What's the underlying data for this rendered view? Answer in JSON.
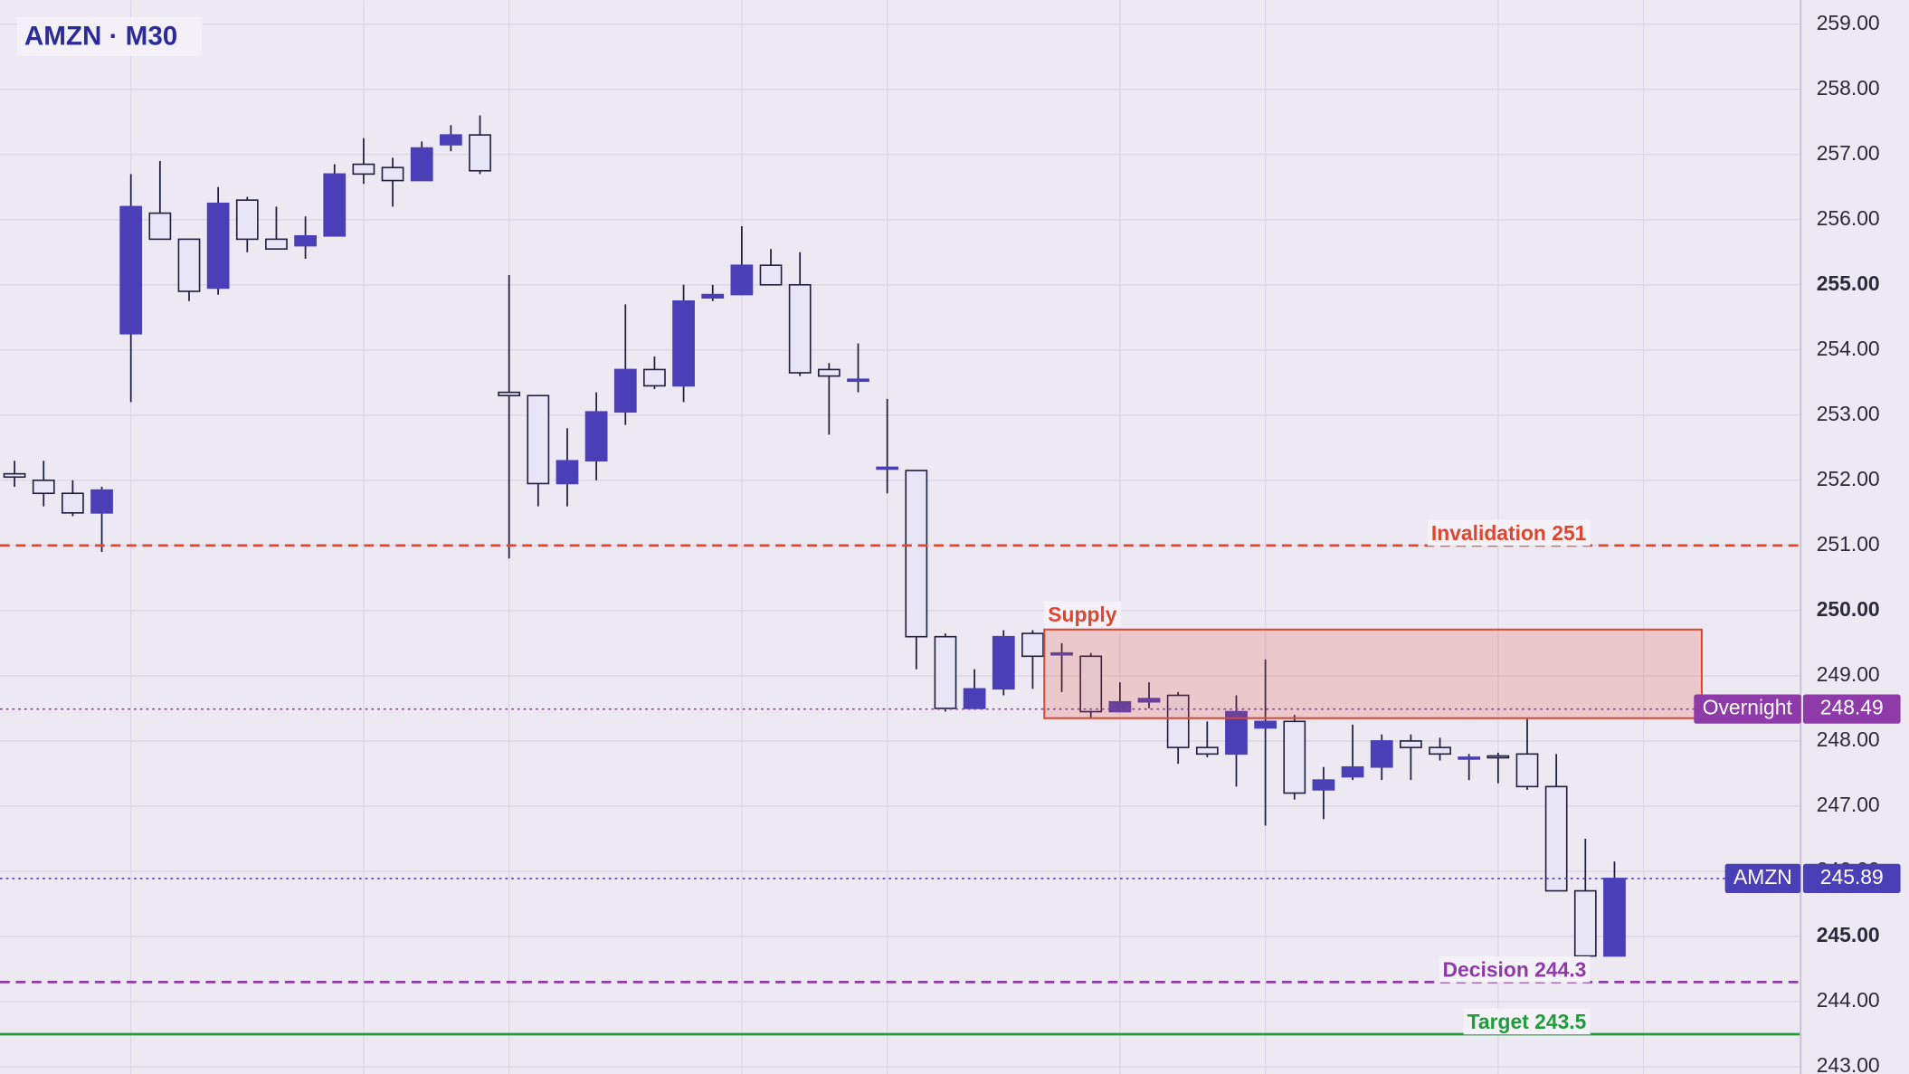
{
  "chart_data": {
    "type": "candlestick",
    "title": "AMZN · M30",
    "open": [
      252.1,
      252.0,
      251.8,
      251.5,
      254.25,
      256.1,
      255.7,
      254.95,
      256.3,
      255.7,
      255.6,
      255.75,
      256.85,
      256.8,
      256.6,
      257.15,
      257.3,
      253.35,
      253.3,
      251.95,
      252.3,
      253.05,
      253.7,
      253.45,
      254.8,
      254.85,
      255.3,
      255.0,
      253.7,
      253.55,
      252.2,
      252.15,
      249.6,
      248.5,
      248.8,
      249.65,
      249.35,
      249.3,
      248.45,
      248.6,
      248.7,
      247.9,
      247.8,
      248.2,
      248.3,
      247.25,
      247.45,
      247.6,
      248.0,
      247.9,
      247.75,
      247.77,
      247.8,
      247.3,
      245.7,
      244.7
    ],
    "high": [
      252.3,
      252.3,
      252.0,
      251.9,
      256.7,
      256.9,
      255.7,
      256.5,
      256.35,
      256.2,
      256.05,
      256.85,
      257.25,
      256.95,
      257.2,
      257.45,
      257.6,
      255.15,
      253.3,
      252.8,
      253.35,
      254.7,
      253.9,
      255.0,
      255.0,
      255.9,
      255.55,
      255.5,
      253.8,
      254.1,
      253.25,
      252.15,
      249.65,
      249.1,
      249.7,
      249.7,
      249.5,
      249.35,
      248.9,
      248.9,
      248.75,
      248.3,
      248.7,
      249.25,
      248.4,
      247.6,
      248.25,
      248.1,
      248.1,
      248.05,
      247.8,
      247.82,
      248.35,
      247.8,
      246.5,
      246.15
    ],
    "low": [
      251.9,
      251.6,
      251.45,
      250.9,
      253.2,
      255.7,
      254.75,
      254.85,
      255.5,
      255.55,
      255.4,
      255.75,
      256.55,
      256.2,
      256.6,
      257.05,
      256.7,
      250.8,
      251.6,
      251.6,
      252.0,
      252.85,
      253.4,
      253.2,
      254.75,
      254.85,
      255.0,
      253.6,
      252.7,
      253.35,
      251.8,
      249.1,
      248.45,
      248.5,
      248.7,
      248.8,
      248.75,
      248.35,
      248.45,
      248.5,
      247.65,
      247.75,
      247.3,
      246.7,
      247.1,
      246.8,
      247.4,
      247.4,
      247.4,
      247.7,
      247.4,
      247.35,
      247.25,
      245.7,
      244.6,
      244.7
    ],
    "close": [
      252.05,
      251.8,
      251.5,
      251.85,
      256.2,
      255.7,
      254.9,
      256.25,
      255.7,
      255.55,
      255.75,
      256.7,
      256.7,
      256.6,
      257.1,
      257.3,
      256.75,
      253.3,
      251.95,
      252.3,
      253.05,
      253.7,
      253.45,
      254.75,
      254.85,
      255.3,
      255.0,
      253.65,
      253.6,
      253.55,
      252.2,
      249.6,
      248.5,
      248.8,
      249.6,
      249.3,
      249.35,
      248.45,
      248.6,
      248.65,
      247.9,
      247.8,
      248.45,
      248.3,
      247.2,
      247.4,
      247.6,
      248.0,
      247.9,
      247.8,
      247.75,
      247.75,
      247.3,
      245.7,
      244.7,
      245.89
    ],
    "up_color": "#4b3fb8",
    "down_color": "#e8e6f6",
    "xlim": [
      -0.5,
      61.4
    ],
    "xgrid": [
      4,
      12,
      17,
      25,
      30,
      38,
      43,
      51,
      56
    ],
    "ylim": [
      242.89,
      259.37
    ],
    "yticks": [
      {
        "value": 243,
        "label": "243.00"
      },
      {
        "value": 244,
        "label": "244.00"
      },
      {
        "value": 245,
        "label": "245.00"
      },
      {
        "value": 246,
        "label": "246.00"
      },
      {
        "value": 247,
        "label": "247.00"
      },
      {
        "value": 248,
        "label": "248.00"
      },
      {
        "value": 249,
        "label": "249.00"
      },
      {
        "value": 250,
        "label": "250.00"
      },
      {
        "value": 251,
        "label": "251.00"
      },
      {
        "value": 252,
        "label": "252.00"
      },
      {
        "value": 253,
        "label": "253.00"
      },
      {
        "value": 254,
        "label": "254.00"
      },
      {
        "value": 255,
        "label": "255.00"
      },
      {
        "value": 256,
        "label": "256.00"
      },
      {
        "value": 257,
        "label": "257.00"
      },
      {
        "value": 258,
        "label": "258.00"
      },
      {
        "value": 259,
        "label": "259.00"
      }
    ],
    "zone": {
      "label": "Supply",
      "x0": 35.4,
      "x1": 58.0,
      "y0": 248.35,
      "y1": 249.71,
      "color": "#e0452e"
    },
    "levels": [
      {
        "label": "Invalidation 251",
        "value": 251,
        "color": "#e0452e",
        "style": "dashed"
      },
      {
        "label": "Decision 244.3",
        "value": 244.3,
        "color": "#8e3aa8",
        "style": "dashed"
      },
      {
        "label": "Target 243.5",
        "value": 243.5,
        "color": "#1f9d3a",
        "style": "solid"
      },
      {
        "label": "Overnight",
        "value": 248.49,
        "color": "#8e3aa8",
        "style": "dotted",
        "tag": true
      },
      {
        "label": "AMZN",
        "value": 245.89,
        "color": "#4b3fb8",
        "style": "dotted",
        "tag": true
      }
    ]
  }
}
